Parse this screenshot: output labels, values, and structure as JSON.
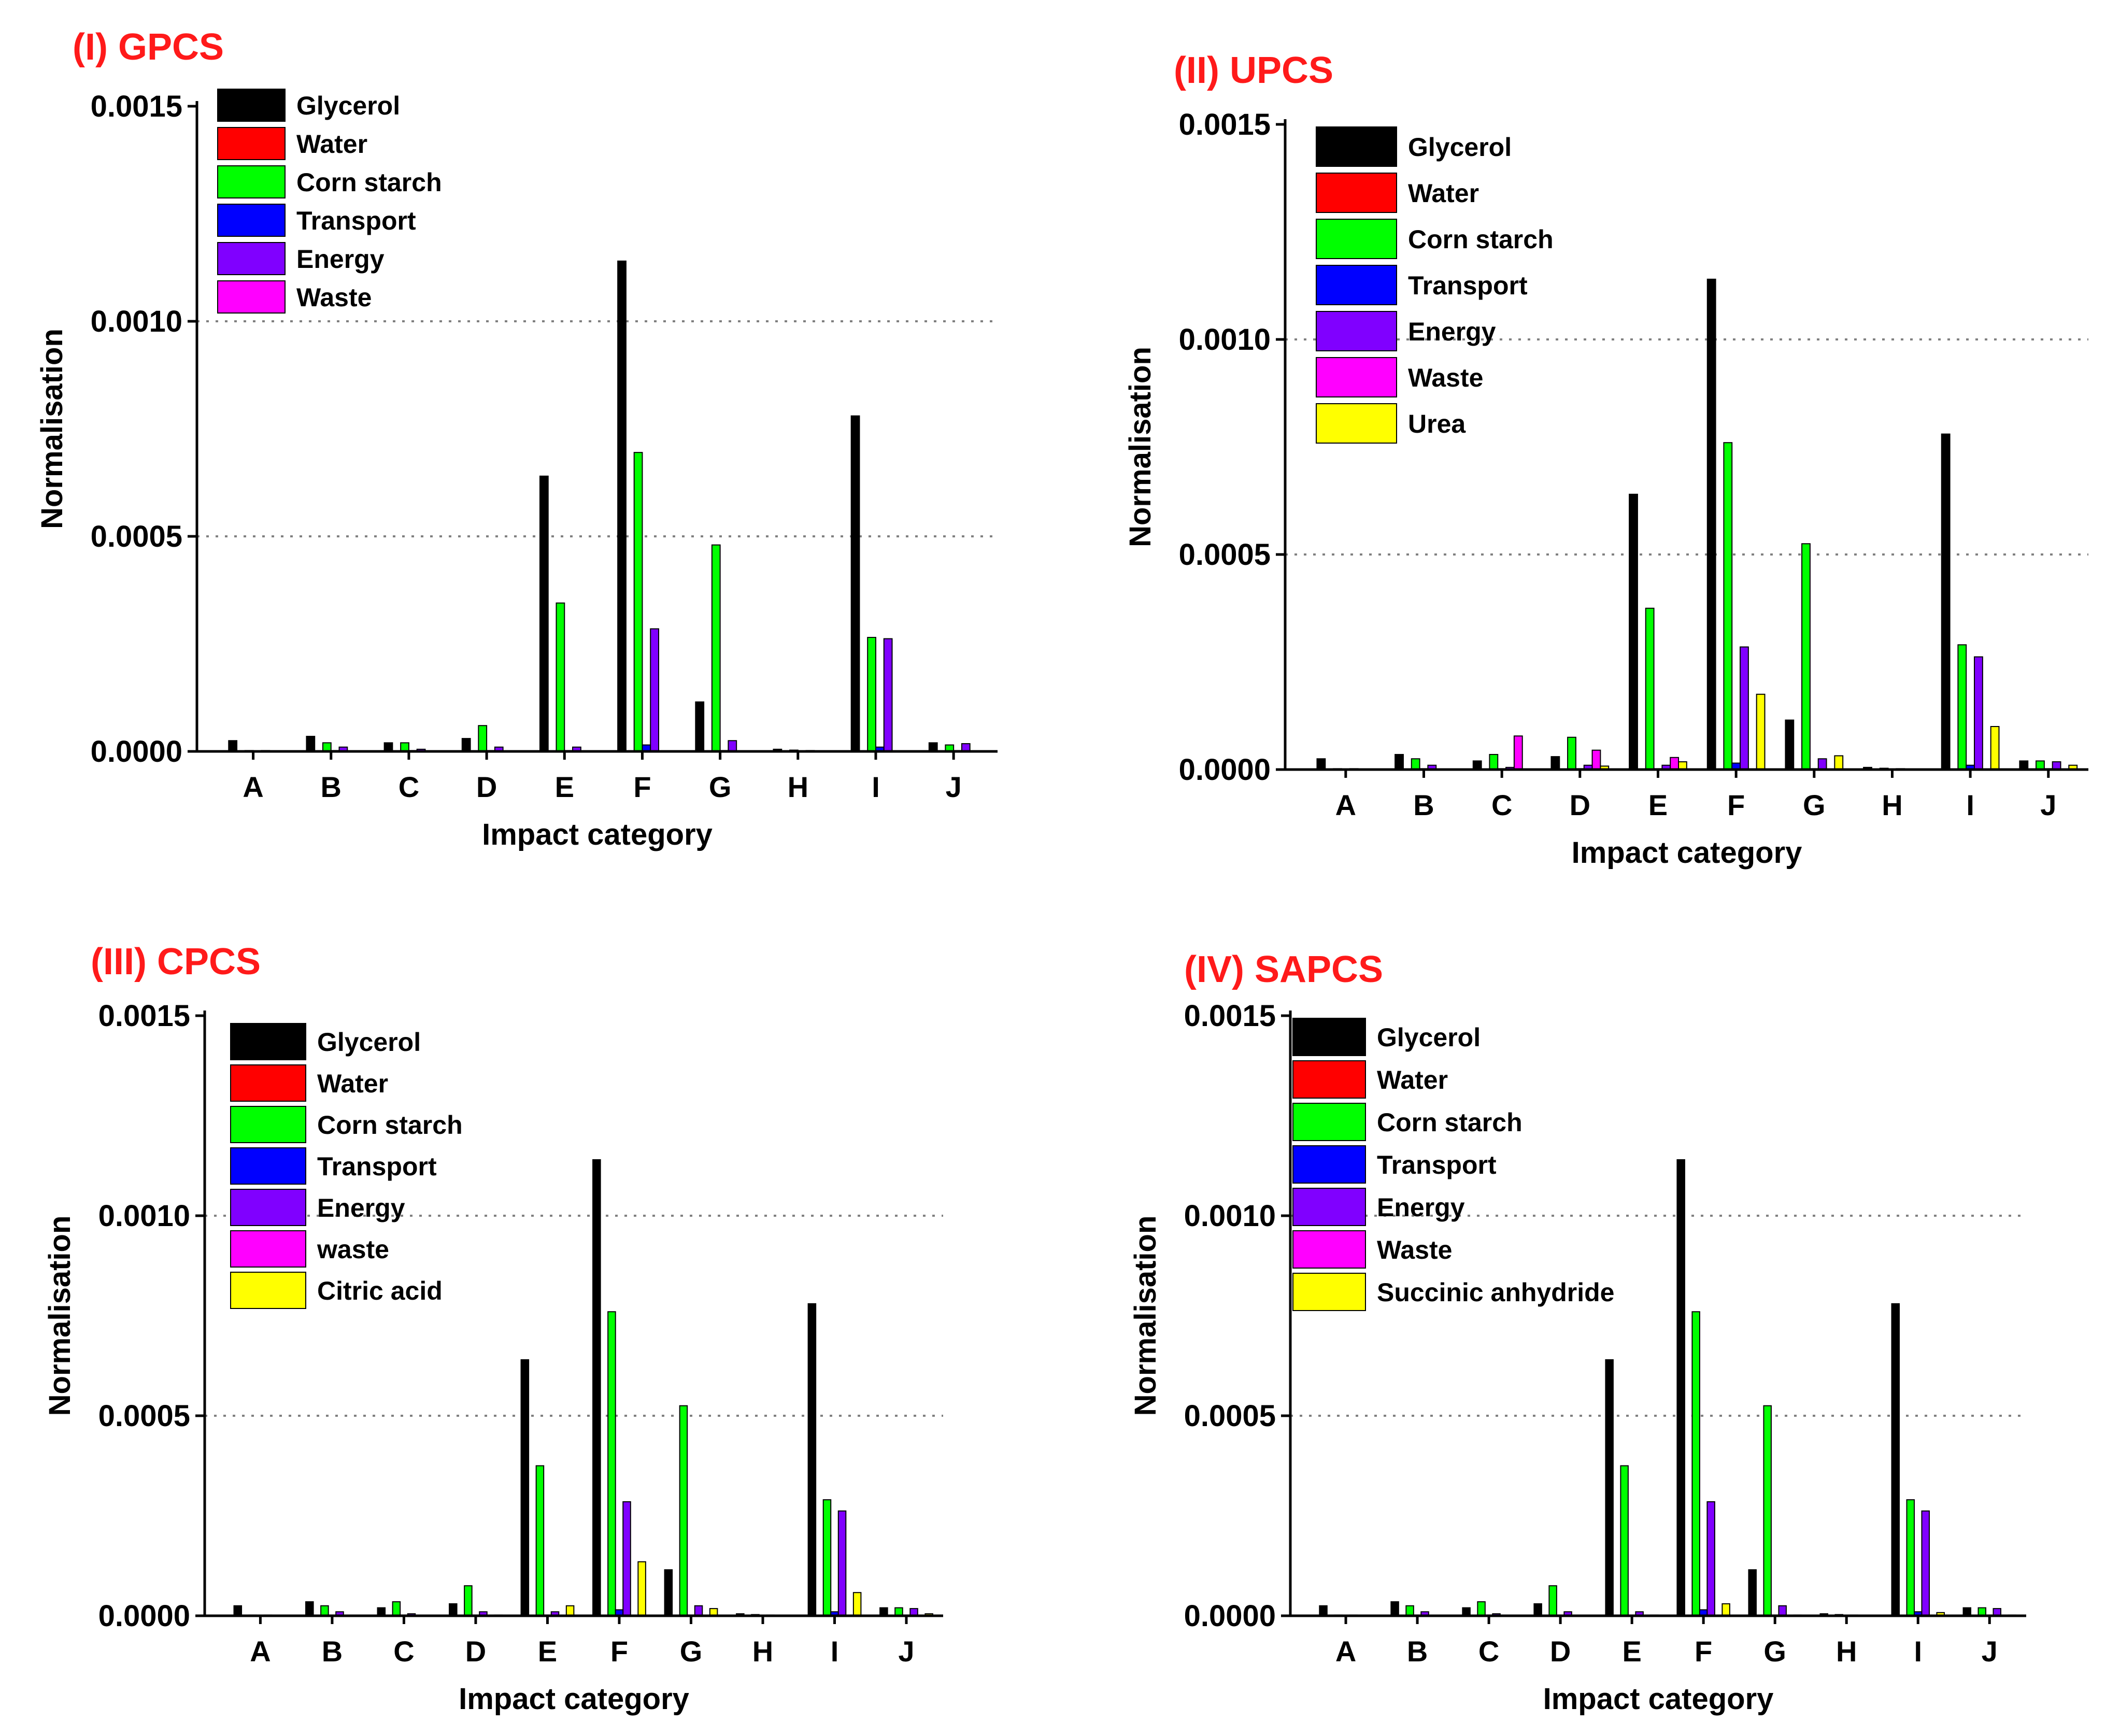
{
  "chart_data": [
    {
      "type": "bar",
      "title": "(I) GPCS",
      "xlabel": "Impact category",
      "ylabel": "Normalisation",
      "ylim": [
        0,
        0.0015
      ],
      "yticks": [
        "0.0000",
        "0.0005",
        "0.0010",
        "0.0015"
      ],
      "grid": "dotted horizontal at 0.0005 and 0.0010",
      "legend_position": "top-left",
      "categories": [
        "A",
        "B",
        "C",
        "D",
        "E",
        "F",
        "G",
        "H",
        "I",
        "J"
      ],
      "series": [
        {
          "name": "Glycerol",
          "color": "#000000",
          "values": [
            2.5e-05,
            3.5e-05,
            2e-05,
            3e-05,
            0.00064,
            0.00114,
            0.000115,
            5e-06,
            0.00078,
            2e-05
          ]
        },
        {
          "name": "Water",
          "color": "#ff0000",
          "values": [
            1e-06,
            1e-06,
            1e-06,
            1e-06,
            1e-06,
            1e-06,
            1e-06,
            1e-06,
            1e-06,
            1e-06
          ]
        },
        {
          "name": "Corn starch",
          "color": "#00ff00",
          "values": [
            2e-06,
            2e-05,
            2e-05,
            6e-05,
            0.000345,
            0.000695,
            0.00048,
            3e-06,
            0.000265,
            1.5e-05
          ]
        },
        {
          "name": "Transport",
          "color": "#0000ff",
          "values": [
            1e-06,
            2e-06,
            2e-06,
            2e-06,
            2e-06,
            1.5e-05,
            2e-06,
            1e-06,
            1e-05,
            2e-06
          ]
        },
        {
          "name": "Energy",
          "color": "#8000ff",
          "values": [
            2e-06,
            1e-05,
            5e-06,
            1e-05,
            1e-05,
            0.000285,
            2.5e-05,
            2e-06,
            0.000262,
            1.8e-05
          ]
        },
        {
          "name": "Waste",
          "color": "#ff00ff",
          "values": [
            1e-06,
            1e-06,
            1e-06,
            1e-06,
            1e-06,
            1e-06,
            1e-06,
            1e-06,
            1e-06,
            1e-06
          ]
        }
      ]
    },
    {
      "type": "bar",
      "title": "(II) UPCS",
      "xlabel": "Impact category",
      "ylabel": "Normalisation",
      "ylim": [
        0,
        0.0015
      ],
      "yticks": [
        "0.0000",
        "0.0005",
        "0.0010",
        "0.0015"
      ],
      "grid": "dotted horizontal at 0.0005 and 0.0010",
      "legend_position": "top-left",
      "categories": [
        "A",
        "B",
        "C",
        "D",
        "E",
        "F",
        "G",
        "H",
        "I",
        "J"
      ],
      "series": [
        {
          "name": "Glycerol",
          "color": "#000000",
          "values": [
            2.5e-05,
            3.5e-05,
            2e-05,
            3e-05,
            0.00064,
            0.00114,
            0.000115,
            5e-06,
            0.00078,
            2e-05
          ]
        },
        {
          "name": "Water",
          "color": "#ff0000",
          "values": [
            1e-06,
            1e-06,
            1e-06,
            1e-06,
            1e-06,
            1e-06,
            1e-06,
            1e-06,
            1e-06,
            1e-06
          ]
        },
        {
          "name": "Corn starch",
          "color": "#00ff00",
          "values": [
            2e-06,
            2.5e-05,
            3.5e-05,
            7.5e-05,
            0.000375,
            0.00076,
            0.000525,
            3e-06,
            0.00029,
            2e-05
          ]
        },
        {
          "name": "Transport",
          "color": "#0000ff",
          "values": [
            1e-06,
            2e-06,
            2e-06,
            2e-06,
            2e-06,
            1.5e-05,
            2e-06,
            1e-06,
            1e-05,
            2e-06
          ]
        },
        {
          "name": "Energy",
          "color": "#8000ff",
          "values": [
            2e-06,
            1e-05,
            5e-06,
            1e-05,
            1e-05,
            0.000285,
            2.5e-05,
            2e-06,
            0.000262,
            1.8e-05
          ]
        },
        {
          "name": " Waste",
          "color": "#ff00ff",
          "values": [
            1e-06,
            1e-06,
            7.8e-05,
            4.5e-05,
            2.8e-05,
            1e-06,
            1e-06,
            1e-06,
            1e-06,
            1e-06
          ]
        },
        {
          "name": "Urea",
          "color": "#ffff00",
          "values": [
            1e-06,
            1e-06,
            1e-06,
            8e-06,
            1.8e-05,
            0.000175,
            3.2e-05,
            1e-06,
            0.0001,
            1e-05
          ]
        }
      ]
    },
    {
      "type": "bar",
      "title": "(III) CPCS",
      "xlabel": "Impact category",
      "ylabel": "Normalisation",
      "ylim": [
        0,
        0.0015
      ],
      "yticks": [
        "0.0000",
        "0.0005",
        "0.0010",
        "0.0015"
      ],
      "grid": "dotted horizontal at 0.0005 and 0.0010",
      "legend_position": "top-left",
      "categories": [
        "A",
        "B",
        "C",
        "D",
        "E",
        "F",
        "G",
        "H",
        "I",
        "J"
      ],
      "series": [
        {
          "name": "Glycerol",
          "color": "#000000",
          "values": [
            2.5e-05,
            3.5e-05,
            2e-05,
            3e-05,
            0.00064,
            0.00114,
            0.000115,
            5e-06,
            0.00078,
            2e-05
          ]
        },
        {
          "name": "Water",
          "color": "#ff0000",
          "values": [
            1e-06,
            1e-06,
            1e-06,
            1e-06,
            1e-06,
            1e-06,
            1e-06,
            1e-06,
            1e-06,
            1e-06
          ]
        },
        {
          "name": "Corn starch",
          "color": "#00ff00",
          "values": [
            2e-06,
            2.5e-05,
            3.5e-05,
            7.5e-05,
            0.000375,
            0.00076,
            0.000525,
            3e-06,
            0.00029,
            2e-05
          ]
        },
        {
          "name": "Transport",
          "color": "#0000ff",
          "values": [
            1e-06,
            2e-06,
            2e-06,
            2e-06,
            2e-06,
            1.5e-05,
            2e-06,
            1e-06,
            1e-05,
            2e-06
          ]
        },
        {
          "name": "Energy",
          "color": "#8000ff",
          "values": [
            2e-06,
            1e-05,
            5e-06,
            1e-05,
            1e-05,
            0.000285,
            2.5e-05,
            2e-06,
            0.000262,
            1.8e-05
          ]
        },
        {
          "name": " waste",
          "color": "#ff00ff",
          "values": [
            1e-06,
            1e-06,
            1e-06,
            1e-06,
            1e-06,
            1e-06,
            1e-06,
            1e-06,
            1e-06,
            1e-06
          ]
        },
        {
          "name": "Citric acid",
          "color": "#ffff00",
          "values": [
            1e-06,
            1e-06,
            1e-06,
            2e-06,
            2.5e-05,
            0.000135,
            1.8e-05,
            1e-06,
            5.8e-05,
            5e-06
          ]
        }
      ]
    },
    {
      "type": "bar",
      "title": "(IV) SAPCS",
      "xlabel": "Impact category",
      "ylabel": "Normalisation",
      "ylim": [
        0,
        0.0015
      ],
      "yticks": [
        "0.0000",
        "0.0005",
        "0.0010",
        "0.0015"
      ],
      "grid": "dotted horizontal at 0.0005 and 0.0010",
      "legend_position": "top-left",
      "categories": [
        "A",
        "B",
        "C",
        "D",
        "E",
        "F",
        "G",
        "H",
        "I",
        "J"
      ],
      "series": [
        {
          "name": "Glycerol",
          "color": "#000000",
          "values": [
            2.5e-05,
            3.5e-05,
            2e-05,
            3e-05,
            0.00064,
            0.00114,
            0.000115,
            5e-06,
            0.00078,
            2e-05
          ]
        },
        {
          "name": "Water",
          "color": "#ff0000",
          "values": [
            1e-06,
            1e-06,
            1e-06,
            1e-06,
            1e-06,
            1e-06,
            1e-06,
            1e-06,
            1e-06,
            1e-06
          ]
        },
        {
          "name": "Corn starch",
          "color": "#00ff00",
          "values": [
            2e-06,
            2.5e-05,
            3.5e-05,
            7.5e-05,
            0.000375,
            0.00076,
            0.000525,
            3e-06,
            0.00029,
            2e-05
          ]
        },
        {
          "name": "Transport",
          "color": "#0000ff",
          "values": [
            1e-06,
            2e-06,
            2e-06,
            2e-06,
            2e-06,
            1.5e-05,
            2e-06,
            1e-06,
            1e-05,
            2e-06
          ]
        },
        {
          "name": "Energy",
          "color": "#8000ff",
          "values": [
            2e-06,
            1e-05,
            5e-06,
            1e-05,
            1e-05,
            0.000285,
            2.5e-05,
            2e-06,
            0.000262,
            1.8e-05
          ]
        },
        {
          "name": "Waste",
          "color": "#ff00ff",
          "values": [
            1e-06,
            1e-06,
            1e-06,
            1e-06,
            1e-06,
            1e-06,
            1e-06,
            1e-06,
            1e-06,
            1e-06
          ]
        },
        {
          "name": "Succinic anhydride",
          "color": "#ffff00",
          "values": [
            1e-06,
            1e-06,
            1e-06,
            1e-06,
            2e-06,
            3e-05,
            2e-06,
            1e-06,
            8e-06,
            2e-06
          ]
        }
      ]
    }
  ]
}
